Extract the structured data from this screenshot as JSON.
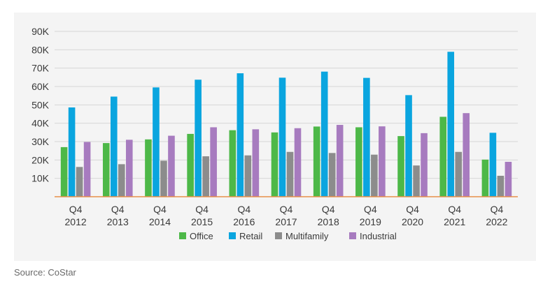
{
  "chart_data": {
    "type": "bar",
    "categories": [
      [
        "Q4",
        "2012"
      ],
      [
        "Q4",
        "2013"
      ],
      [
        "Q4",
        "2014"
      ],
      [
        "Q4",
        "2015"
      ],
      [
        "Q4",
        "2016"
      ],
      [
        "Q4",
        "2017"
      ],
      [
        "Q4",
        "2018"
      ],
      [
        "Q4",
        "2019"
      ],
      [
        "Q4",
        "2020"
      ],
      [
        "Q4",
        "2021"
      ],
      [
        "Q4",
        "2022"
      ]
    ],
    "series": [
      {
        "name": "Office",
        "color": "#4db848",
        "values": [
          27000,
          29200,
          31200,
          34200,
          36200,
          35000,
          38200,
          37800,
          33000,
          43500,
          20200
        ]
      },
      {
        "name": "Retail",
        "color": "#0aa5df",
        "values": [
          48600,
          54500,
          59500,
          63700,
          67200,
          64800,
          68100,
          64700,
          55300,
          78900,
          34800
        ]
      },
      {
        "name": "Multifamily",
        "color": "#8c8c8c",
        "values": [
          16200,
          17700,
          19600,
          22000,
          22500,
          24400,
          23800,
          22900,
          17000,
          24400,
          11400
        ]
      },
      {
        "name": "Industrial",
        "color": "#a77bbf",
        "values": [
          29800,
          31000,
          33200,
          37800,
          36700,
          37300,
          39100,
          38300,
          34600,
          45500,
          19000
        ]
      }
    ],
    "ylim": [
      0,
      90000
    ],
    "yticks": [
      10000,
      20000,
      30000,
      40000,
      50000,
      60000,
      70000,
      80000,
      90000
    ],
    "ytick_labels": [
      "10K",
      "20K",
      "30K",
      "40K",
      "50K",
      "60K",
      "70K",
      "80K",
      "90K"
    ],
    "grid": true,
    "legend_position": "bottom",
    "baseline_color": "#e8904a",
    "grid_color": "#d6d6d6"
  },
  "source": "Source: CoStar"
}
